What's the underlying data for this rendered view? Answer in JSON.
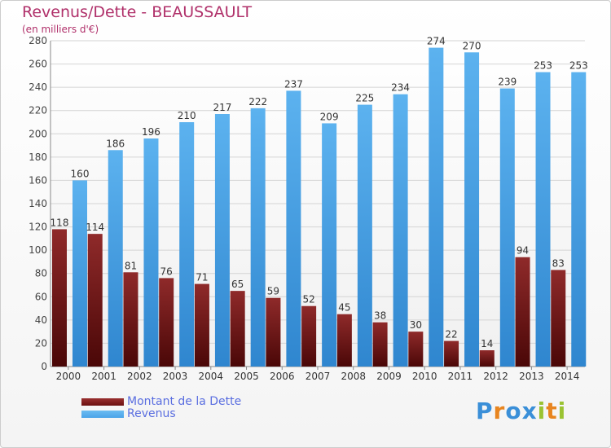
{
  "header": {
    "title": "Revenus/Dette - BEAUSSAULT",
    "subtitle": "(en milliers d'€)"
  },
  "chart_data": {
    "type": "bar",
    "categories": [
      "2000",
      "2001",
      "2002",
      "2003",
      "2004",
      "2005",
      "2006",
      "2007",
      "2008",
      "2009",
      "2010",
      "2011",
      "2012",
      "2013",
      "2014"
    ],
    "series": [
      {
        "name": "Montant de la Dette",
        "color": "#7a1a1a",
        "values": [
          118,
          114,
          81,
          76,
          71,
          65,
          59,
          52,
          45,
          38,
          30,
          22,
          14,
          94,
          83
        ]
      },
      {
        "name": "Revenus",
        "color": "#4aa3e8",
        "values": [
          160,
          186,
          196,
          210,
          217,
          222,
          237,
          209,
          225,
          234,
          274,
          270,
          239,
          253,
          253
        ]
      }
    ],
    "ylim": [
      0,
      280
    ],
    "yticks": [
      0,
      20,
      40,
      60,
      80,
      100,
      120,
      140,
      160,
      180,
      200,
      220,
      240,
      260,
      280
    ],
    "grid": true,
    "data_labels": true,
    "legend_position": "bottom-left"
  },
  "legend": {
    "items": [
      {
        "label": "Montant de la Dette",
        "color": "#6b0f0f"
      },
      {
        "label": "Revenus",
        "color": "#4aa3e8"
      }
    ]
  },
  "logo": {
    "letters": [
      "P",
      "r",
      "o",
      "x",
      "i",
      "t",
      "i"
    ],
    "colors": [
      "#3a8fd8",
      "#e8851f",
      "#3a8fd8",
      "#3a8fd8",
      "#9ac332",
      "#e8851f",
      "#9ac332"
    ]
  }
}
